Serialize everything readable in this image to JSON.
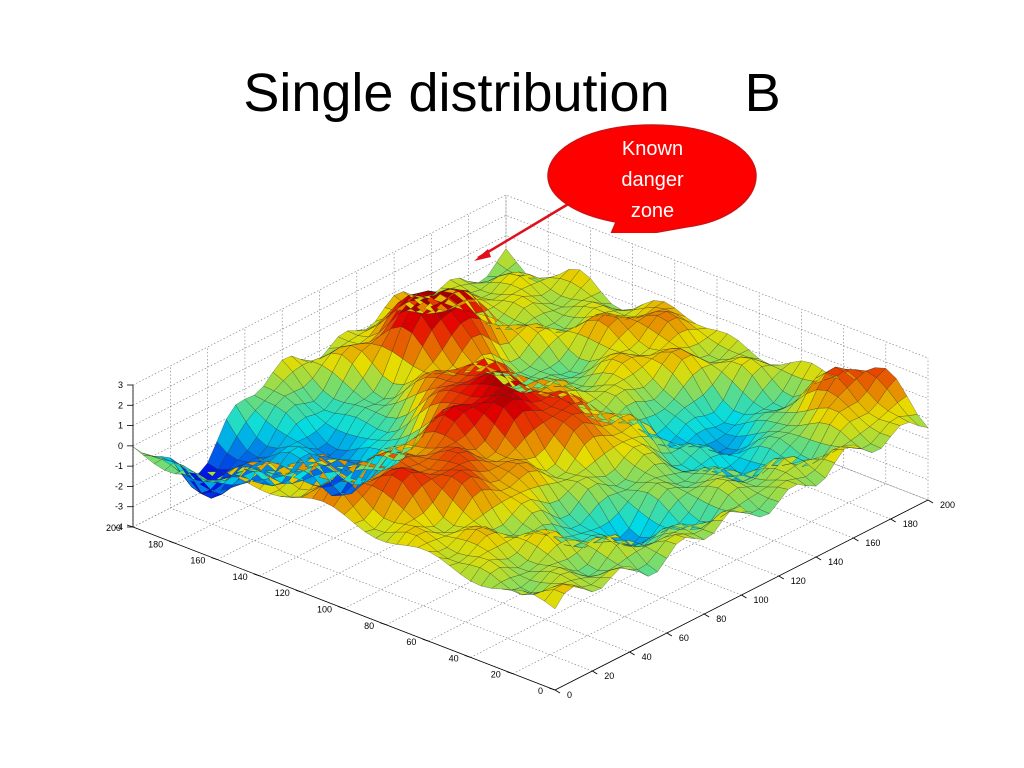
{
  "slide": {
    "title": "Single distribution     B"
  },
  "callout": {
    "lines": [
      "Known",
      "danger",
      "zone"
    ],
    "fill_color": "#ff0000",
    "text_color": "#ffffff",
    "arrow_color": "#e0101a"
  },
  "chart_data": {
    "type": "surface",
    "description_of_surface": "rugged random terrain with multiple peaks and valleys",
    "x_ticks": [
      0,
      20,
      40,
      60,
      80,
      100,
      120,
      140,
      160,
      180,
      200
    ],
    "y_ticks": [
      0,
      20,
      40,
      60,
      80,
      100,
      120,
      140,
      160,
      180,
      200
    ],
    "z_ticks": [
      -4,
      -3,
      -2,
      -1,
      0,
      1,
      2,
      3
    ],
    "xlim": [
      0,
      200
    ],
    "ylim": [
      0,
      200
    ],
    "zlim": [
      -4,
      3
    ],
    "grid": true,
    "colormap": "jet",
    "mesh_edges": "black"
  }
}
